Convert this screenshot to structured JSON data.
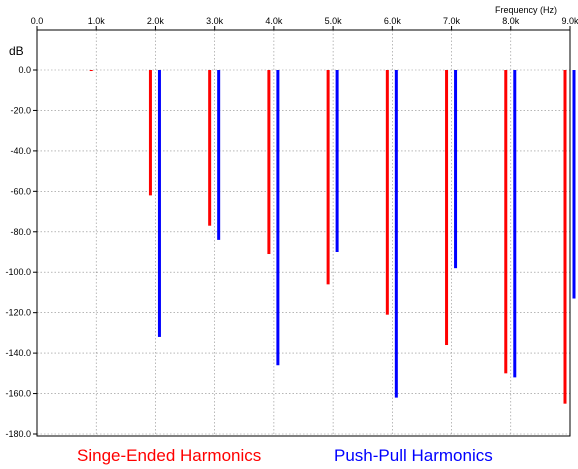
{
  "chart_data": {
    "type": "bar",
    "xlabel": "Frequency  (Hz)",
    "ylabel": "dB",
    "x_ticks": [
      "0.0",
      "1.0k",
      "2.0k",
      "3.0k",
      "4.0k",
      "5.0k",
      "6.0k",
      "7.0k",
      "8.0k",
      "9.0k"
    ],
    "y_ticks": [
      "0.0",
      "-20.0",
      "-40.0",
      "-60.0",
      "-80.0",
      "-100.0",
      "-120.0",
      "-140.0",
      "-160.0",
      "-180.0"
    ],
    "xlim": [
      0,
      9000
    ],
    "ylim": [
      -182,
      0
    ],
    "grid": true,
    "legend_position": "bottom",
    "series": [
      {
        "name": "Singe-Ended Harmonics",
        "color": "#ff0000",
        "x": [
          1000,
          2000,
          3000,
          4000,
          5000,
          6000,
          7000,
          8000,
          9000
        ],
        "values": [
          -0.5,
          -62,
          -77,
          -91,
          -106,
          -121,
          -136,
          -150,
          -165
        ]
      },
      {
        "name": "Push-Pull Harmonics",
        "color": "#0000ff",
        "x": [
          2000,
          3000,
          4000,
          5000,
          6000,
          7000,
          8000,
          9000
        ],
        "values": [
          -132,
          -84,
          -146,
          -90,
          -162,
          -98,
          -152,
          -113
        ]
      }
    ]
  },
  "colors": {
    "background": "#ffffff",
    "grid": "#8c8c8c",
    "axis": "#000000"
  }
}
